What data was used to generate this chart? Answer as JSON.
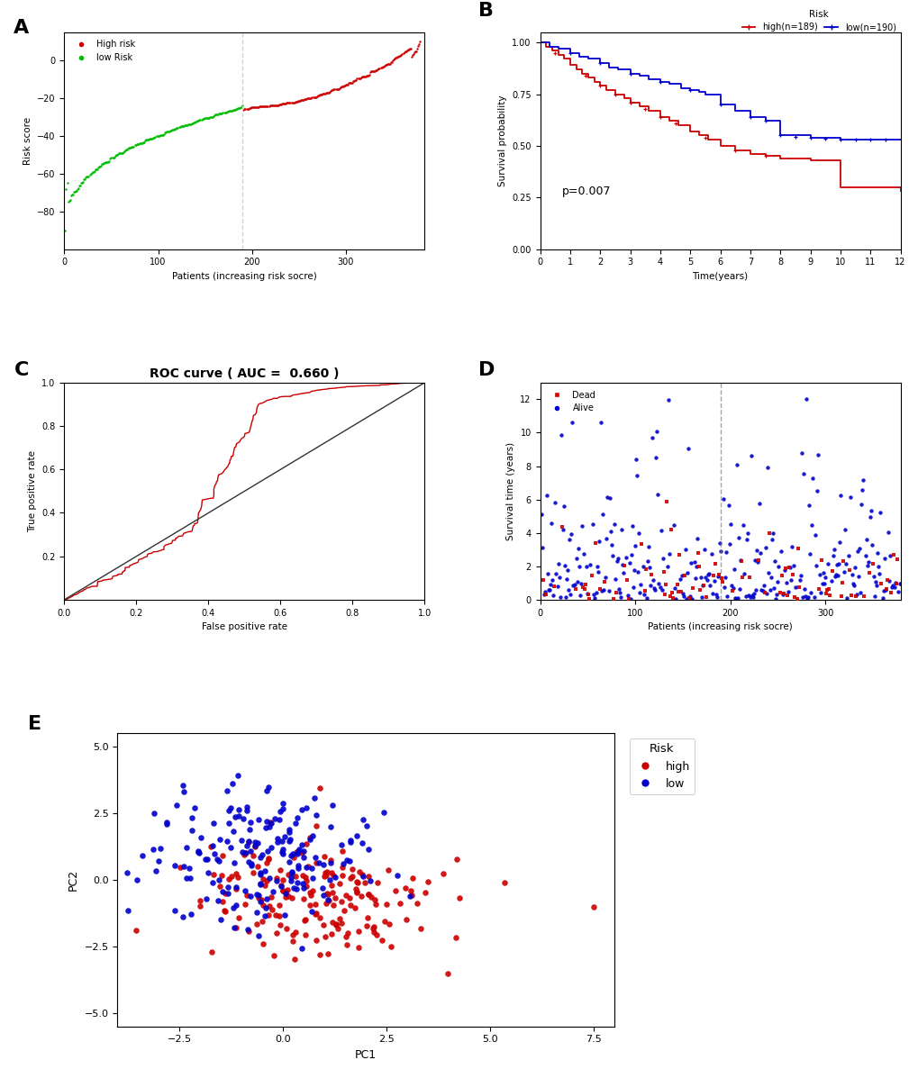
{
  "panel_A": {
    "title": "A",
    "n_low": 190,
    "n_high": 189,
    "median_cutoff": 190,
    "total": 379,
    "ylim": [
      -100,
      15
    ],
    "yticks": [
      -80,
      -60,
      -40,
      -20,
      0
    ],
    "xticks": [
      0,
      100,
      200,
      300
    ],
    "xlabel": "Patients (increasing risk socre)",
    "ylabel": "Risk score",
    "low_color": "#00BB00",
    "high_color": "#CC0000",
    "low_label": "low Risk",
    "high_label": "High risk"
  },
  "panel_B": {
    "title": "B",
    "legend_title": "Risk",
    "high_label": "high(n=189)",
    "low_label": "low(n=190)",
    "high_color": "#CC0000",
    "low_color": "#0000CC",
    "xlabel": "Time(years)",
    "ylabel": "Survival probability",
    "pvalue": "p=0.007",
    "xlim": [
      0,
      12
    ],
    "ylim": [
      0.0,
      1.05
    ],
    "yticks": [
      0.0,
      0.25,
      0.5,
      0.75,
      1.0
    ],
    "xticks": [
      0,
      1,
      2,
      3,
      4,
      5,
      6,
      7,
      8,
      9,
      10,
      11,
      12
    ]
  },
  "panel_C": {
    "title": "C",
    "plot_title": "ROC curve ( AUC =  0.660 )",
    "xlabel": "False positive rate",
    "ylabel": "True positive rate",
    "xlim": [
      0.0,
      1.0
    ],
    "ylim": [
      0.0,
      1.0
    ],
    "xticks": [
      0.0,
      0.2,
      0.4,
      0.6,
      0.8,
      1.0
    ],
    "yticks": [
      0.2,
      0.4,
      0.6,
      0.8,
      1.0
    ],
    "curve_color": "#CC0000",
    "diag_color": "#333333"
  },
  "panel_D": {
    "title": "D",
    "xlabel": "Patients (increasing risk socre)",
    "ylabel": "Survival time (years)",
    "ylim": [
      0,
      13
    ],
    "yticks": [
      0,
      2,
      4,
      6,
      8,
      10,
      12
    ],
    "xticks": [
      0,
      100,
      200,
      300
    ],
    "xlim": [
      0,
      379
    ],
    "median_cutoff": 190,
    "dead_color": "#CC0000",
    "alive_color": "#0000CC",
    "dead_label": "Dead",
    "alive_label": "Alive"
  },
  "panel_E": {
    "title": "E",
    "xlabel": "PC1",
    "ylabel": "PC2",
    "xlim": [
      -4.0,
      8.0
    ],
    "ylim": [
      -5.5,
      5.5
    ],
    "xticks": [
      -2.5,
      0.0,
      2.5,
      5.0,
      7.5
    ],
    "yticks": [
      -5.0,
      -2.5,
      0.0,
      2.5,
      5.0
    ],
    "high_color": "#CC0000",
    "low_color": "#0000CC",
    "legend_title": "Risk",
    "high_label": "high",
    "low_label": "low"
  },
  "background_color": "#FFFFFF"
}
